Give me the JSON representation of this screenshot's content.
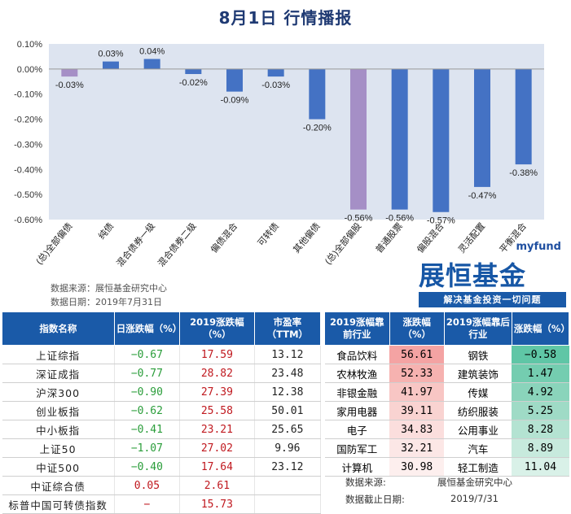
{
  "title": "8月1日  行情播报",
  "chart_data": {
    "type": "bar",
    "categories": [
      "(总)全部偏债",
      "纯债",
      "混合债券一级",
      "混合债券二级",
      "偏债混合",
      "可转债",
      "其他偏债",
      "(总)全部偏股",
      "普通股票",
      "偏股混合",
      "灵活配置",
      "平衡混合"
    ],
    "values": [
      -0.03,
      0.03,
      0.04,
      -0.02,
      -0.09,
      -0.03,
      -0.2,
      -0.56,
      -0.56,
      -0.57,
      -0.47,
      -0.38
    ],
    "value_labels": [
      "-0.03%",
      "0.03%",
      "0.04%",
      "-0.02%",
      "-0.09%",
      "-0.03%",
      "-0.20%",
      "-0.56%",
      "-0.56%",
      "-0.57%",
      "-0.47%",
      "-0.38%"
    ],
    "ylim": [
      -0.6,
      0.1
    ],
    "yticks": [
      "0.10%",
      "0.00%",
      "-0.10%",
      "-0.20%",
      "-0.30%",
      "-0.40%",
      "-0.50%",
      "-0.60%"
    ],
    "ytick_values": [
      0.1,
      0.0,
      -0.1,
      -0.2,
      -0.3,
      -0.4,
      -0.5,
      -0.6
    ],
    "bar_color": "#4472c4",
    "highlight_color": "#a58fc6",
    "highlight_indices": [
      0,
      7
    ],
    "plot_bg": "#dde4f0",
    "grid": false
  },
  "source_line1": "数据来源：展恒基金研究中心",
  "source_line2": "数据日期：2019年7月31日",
  "logo": {
    "small": "myfund",
    "big": "展恒基金",
    "slogan": "解决基金投资一切问题"
  },
  "left_table": {
    "headers": [
      "指数名称",
      "日涨跌幅（%）",
      "2019涨跌幅（%）",
      "市盈率（TTM）"
    ],
    "rows": [
      {
        "name": "上证综指",
        "day": "−0.67",
        "year": "17.59",
        "pe": "13.12"
      },
      {
        "name": "深证成指",
        "day": "−0.77",
        "year": "28.82",
        "pe": "23.48"
      },
      {
        "name": "沪深300",
        "day": "−0.90",
        "year": "27.39",
        "pe": "12.38"
      },
      {
        "name": "创业板指",
        "day": "−0.62",
        "year": "25.58",
        "pe": "50.01"
      },
      {
        "name": "中小板指",
        "day": "−0.41",
        "year": "23.21",
        "pe": "25.65"
      },
      {
        "name": "上证50",
        "day": "−1.07",
        "year": "27.02",
        "pe": "9.96"
      },
      {
        "name": "中证500",
        "day": "−0.40",
        "year": "17.64",
        "pe": "23.12"
      },
      {
        "name": "中证综合债",
        "day": "0.05",
        "year": "2.61",
        "pe": ""
      },
      {
        "name": "标普中国可转债指数",
        "day": "−",
        "year": "15.73",
        "pe": ""
      }
    ]
  },
  "right_table": {
    "headers": [
      "2019涨幅靠前行业",
      "涨跌幅（%）",
      "2019涨幅靠后行业",
      "涨跌幅（%）"
    ],
    "rows": [
      {
        "top": "食品饮料",
        "top_val": "56.61",
        "bot": "钢铁",
        "bot_val": "−0.58"
      },
      {
        "top": "农林牧渔",
        "top_val": "52.33",
        "bot": "建筑装饰",
        "bot_val": "1.47"
      },
      {
        "top": "非银金融",
        "top_val": "41.97",
        "bot": "传媒",
        "bot_val": "4.92"
      },
      {
        "top": "家用电器",
        "top_val": "39.11",
        "bot": "纺织服装",
        "bot_val": "5.25"
      },
      {
        "top": "电子",
        "top_val": "34.83",
        "bot": "公用事业",
        "bot_val": "8.28"
      },
      {
        "top": "国防军工",
        "top_val": "32.21",
        "bot": "汽车",
        "bot_val": "8.89"
      },
      {
        "top": "计算机",
        "top_val": "30.98",
        "bot": "轻工制造",
        "bot_val": "11.04"
      }
    ],
    "top_colors": [
      "#f4a3a3",
      "#f6b2b0",
      "#f8c6c4",
      "#f9d3d1",
      "#fbdedd",
      "#fce7e6",
      "#fdefee"
    ],
    "bot_colors": [
      "#5fc6a6",
      "#74cdb0",
      "#8ad4bb",
      "#9fdbc6",
      "#b4e3d2",
      "#c7eadd",
      "#d9f1e8"
    ]
  },
  "footer": {
    "source_label": "数据来源:",
    "source_value": "展恒基金研究中心",
    "date_label": "数据截止日期:",
    "date_value": "2019/7/31"
  }
}
